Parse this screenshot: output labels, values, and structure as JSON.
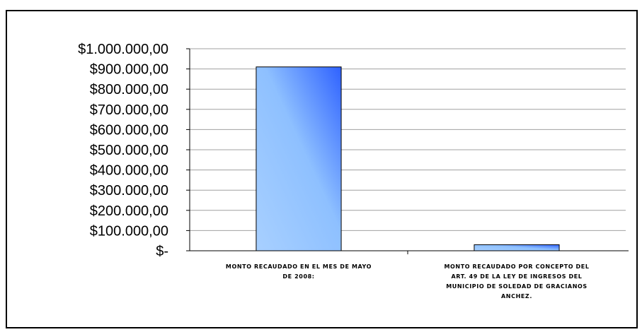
{
  "chart_data": {
    "type": "bar",
    "categories": [
      [
        "MONTO RECAUDADO EN EL MES DE MAYO",
        "DE 2008:"
      ],
      [
        "MONTO RECAUDADO POR CONCEPTO DEL",
        "ART. 49 DE LA LEY DE INGRESOS DEL",
        "MUNICIPIO DE SOLEDAD DE GRACIANOS",
        "ANCHEZ."
      ]
    ],
    "values": [
      910000,
      30000
    ],
    "ylim": [
      0,
      1000000
    ],
    "ytick_values": [
      0,
      100000,
      200000,
      300000,
      400000,
      500000,
      600000,
      700000,
      800000,
      900000,
      1000000
    ],
    "ytick_labels": [
      "$-",
      "$100.000,00",
      "$200.000,00",
      "$300.000,00",
      "$400.000,00",
      "$500.000,00",
      "$600.000,00",
      "$700.000,00",
      "$800.000,00",
      "$900.000,00",
      "$1.000.000,00"
    ],
    "grid": true,
    "legend": "none",
    "colors": {
      "bar_light": "#a8d0ff",
      "bar_mid": "#8ec0ff",
      "bar_dark": "#2f62ff",
      "bar_border": "#000000",
      "grid": "#a0a0a0",
      "axis": "#000000"
    }
  }
}
